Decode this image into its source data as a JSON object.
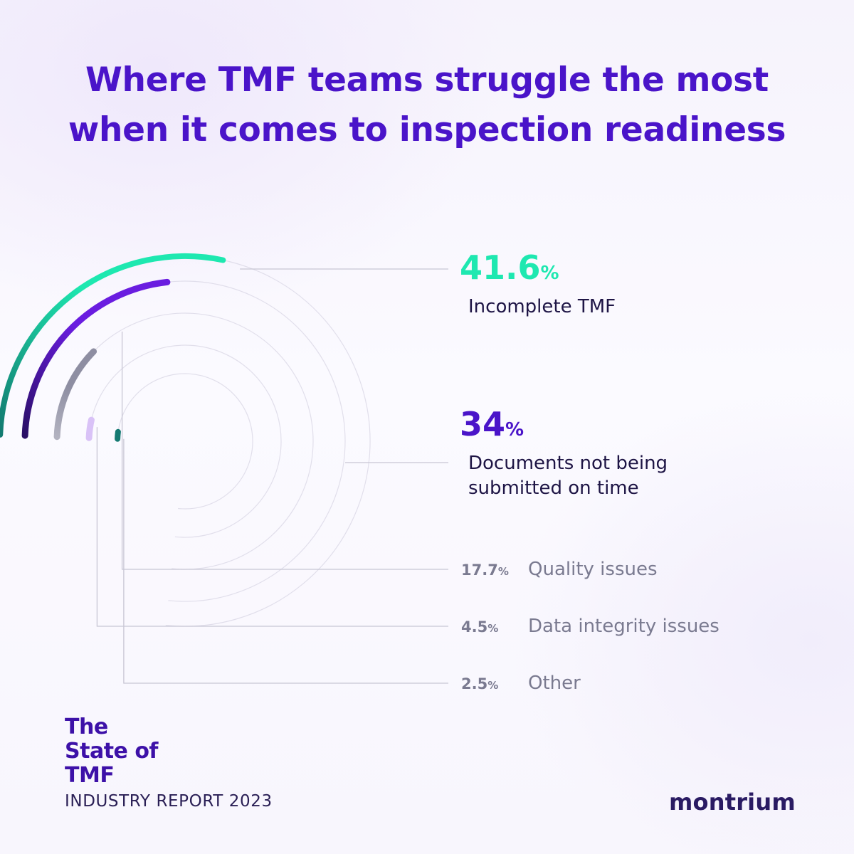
{
  "title_line1": "Where TMF teams struggle the most",
  "title_line2": "when it comes to inspection readiness",
  "chart_data": {
    "type": "radial_bar",
    "title": "Where TMF teams struggle the most when it comes to inspection readiness",
    "unit": "%",
    "categories": [
      "Incomplete TMF",
      "Documents not being submitted on time",
      "Quality issues",
      "Data integrity issues",
      "Other"
    ],
    "values": [
      41.6,
      34,
      17.7,
      4.5,
      2.5
    ],
    "value_labels": [
      "41.6",
      "34",
      "17.7",
      "4.5",
      "2.5"
    ],
    "name_lines": [
      [
        "Incomplete TMF"
      ],
      [
        "Documents not being",
        "submitted on time"
      ],
      [
        "Quality issues"
      ],
      [
        "Data integrity issues"
      ],
      [
        "Other"
      ]
    ],
    "colors": [
      "#1ee8b0",
      "#6a1de0",
      "#8e8ea2",
      "#d9c2f7",
      "#157a72"
    ],
    "gradient_start_colors": [
      "#137a70",
      "#2a0f66",
      "#b2b2c0",
      "#d9c2f7",
      "#157a72"
    ],
    "value_colors": [
      "#1ee8b0",
      "#4a14c9",
      "#7a7a90",
      "#7a7a90",
      "#7a7a90"
    ]
  },
  "brand": {
    "line1": "The",
    "line2": "State of",
    "line3": "TMF"
  },
  "subtitle": "INDUSTRY REPORT 2023",
  "logo": "montrium"
}
